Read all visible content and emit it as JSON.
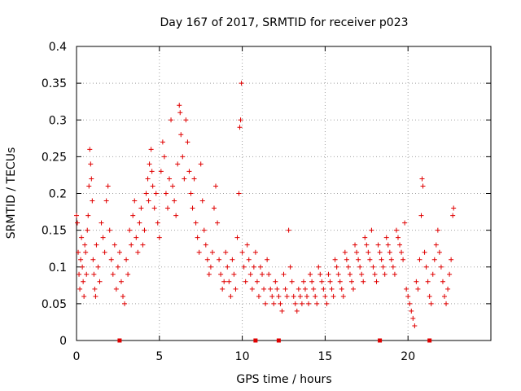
{
  "chart_data": {
    "type": "scatter",
    "title": "Day 167 of 2017, SRMTID for receiver p023",
    "xlabel": "GPS time / hours",
    "ylabel": "SRMTID / TECUs",
    "xlim": [
      0,
      25
    ],
    "ylim": [
      0,
      0.4
    ],
    "x_ticks": [
      0,
      5,
      10,
      15,
      20
    ],
    "x_tick_labels": [
      "0",
      "5",
      "10",
      "15",
      "20"
    ],
    "y_ticks": [
      0,
      0.05,
      0.1,
      0.15,
      0.2,
      0.25,
      0.3,
      0.35,
      0.4
    ],
    "y_tick_labels": [
      "0",
      "0.05",
      "0.1",
      "0.15",
      "0.2",
      "0.25",
      "0.3",
      "0.35",
      "0.4"
    ],
    "grid": true,
    "marker": "+",
    "color": "#e00000",
    "baseline_markers_x": [
      2.6,
      10.8,
      12.2,
      18.3,
      21.3
    ],
    "series": [
      {
        "name": "SRMTID",
        "points": [
          [
            0.0,
            0.17
          ],
          [
            0.05,
            0.16
          ],
          [
            0.1,
            0.12
          ],
          [
            0.15,
            0.09
          ],
          [
            0.2,
            0.07
          ],
          [
            0.25,
            0.11
          ],
          [
            0.3,
            0.14
          ],
          [
            0.35,
            0.1
          ],
          [
            0.4,
            0.08
          ],
          [
            0.45,
            0.06
          ],
          [
            0.5,
            0.13
          ],
          [
            0.55,
            0.12
          ],
          [
            0.6,
            0.09
          ],
          [
            0.65,
            0.15
          ],
          [
            0.7,
            0.17
          ],
          [
            0.75,
            0.21
          ],
          [
            0.8,
            0.26
          ],
          [
            0.85,
            0.24
          ],
          [
            0.9,
            0.22
          ],
          [
            0.95,
            0.19
          ],
          [
            1.0,
            0.11
          ],
          [
            1.05,
            0.09
          ],
          [
            1.1,
            0.07
          ],
          [
            1.15,
            0.06
          ],
          [
            1.2,
            0.13
          ],
          [
            1.3,
            0.1
          ],
          [
            1.4,
            0.08
          ],
          [
            1.5,
            0.16
          ],
          [
            1.6,
            0.14
          ],
          [
            1.7,
            0.12
          ],
          [
            1.8,
            0.19
          ],
          [
            1.9,
            0.21
          ],
          [
            2.0,
            0.15
          ],
          [
            2.1,
            0.11
          ],
          [
            2.2,
            0.09
          ],
          [
            2.3,
            0.13
          ],
          [
            2.4,
            0.07
          ],
          [
            2.5,
            0.1
          ],
          [
            2.6,
            0.12
          ],
          [
            2.7,
            0.08
          ],
          [
            2.8,
            0.06
          ],
          [
            2.9,
            0.05
          ],
          [
            3.0,
            0.11
          ],
          [
            3.1,
            0.09
          ],
          [
            3.2,
            0.15
          ],
          [
            3.3,
            0.13
          ],
          [
            3.4,
            0.17
          ],
          [
            3.5,
            0.19
          ],
          [
            3.6,
            0.14
          ],
          [
            3.7,
            0.12
          ],
          [
            3.8,
            0.16
          ],
          [
            3.9,
            0.18
          ],
          [
            4.0,
            0.13
          ],
          [
            4.1,
            0.15
          ],
          [
            4.2,
            0.2
          ],
          [
            4.3,
            0.22
          ],
          [
            4.35,
            0.19
          ],
          [
            4.4,
            0.24
          ],
          [
            4.5,
            0.26
          ],
          [
            4.55,
            0.23
          ],
          [
            4.6,
            0.21
          ],
          [
            4.7,
            0.18
          ],
          [
            4.8,
            0.2
          ],
          [
            4.9,
            0.16
          ],
          [
            5.0,
            0.14
          ],
          [
            5.1,
            0.23
          ],
          [
            5.2,
            0.27
          ],
          [
            5.3,
            0.25
          ],
          [
            5.4,
            0.2
          ],
          [
            5.5,
            0.18
          ],
          [
            5.6,
            0.22
          ],
          [
            5.7,
            0.3
          ],
          [
            5.8,
            0.21
          ],
          [
            5.9,
            0.19
          ],
          [
            6.0,
            0.17
          ],
          [
            6.1,
            0.24
          ],
          [
            6.2,
            0.32
          ],
          [
            6.25,
            0.31
          ],
          [
            6.3,
            0.28
          ],
          [
            6.4,
            0.25
          ],
          [
            6.5,
            0.22
          ],
          [
            6.6,
            0.3
          ],
          [
            6.7,
            0.27
          ],
          [
            6.8,
            0.23
          ],
          [
            6.9,
            0.2
          ],
          [
            7.0,
            0.18
          ],
          [
            7.1,
            0.22
          ],
          [
            7.2,
            0.16
          ],
          [
            7.3,
            0.14
          ],
          [
            7.4,
            0.12
          ],
          [
            7.5,
            0.24
          ],
          [
            7.6,
            0.19
          ],
          [
            7.7,
            0.15
          ],
          [
            7.8,
            0.13
          ],
          [
            7.9,
            0.11
          ],
          [
            8.0,
            0.09
          ],
          [
            8.1,
            0.1
          ],
          [
            8.2,
            0.12
          ],
          [
            8.3,
            0.18
          ],
          [
            8.4,
            0.21
          ],
          [
            8.5,
            0.16
          ],
          [
            8.6,
            0.11
          ],
          [
            8.7,
            0.09
          ],
          [
            8.8,
            0.07
          ],
          [
            8.9,
            0.08
          ],
          [
            9.0,
            0.12
          ],
          [
            9.1,
            0.1
          ],
          [
            9.2,
            0.08
          ],
          [
            9.3,
            0.06
          ],
          [
            9.4,
            0.11
          ],
          [
            9.5,
            0.09
          ],
          [
            9.6,
            0.07
          ],
          [
            9.7,
            0.14
          ],
          [
            9.8,
            0.2
          ],
          [
            9.85,
            0.29
          ],
          [
            9.9,
            0.3
          ],
          [
            9.95,
            0.35
          ],
          [
            10.0,
            0.12
          ],
          [
            10.1,
            0.1
          ],
          [
            10.2,
            0.08
          ],
          [
            10.3,
            0.13
          ],
          [
            10.4,
            0.11
          ],
          [
            10.5,
            0.09
          ],
          [
            10.6,
            0.07
          ],
          [
            10.7,
            0.1
          ],
          [
            10.8,
            0.12
          ],
          [
            10.9,
            0.08
          ],
          [
            11.0,
            0.06
          ],
          [
            11.1,
            0.1
          ],
          [
            11.2,
            0.09
          ],
          [
            11.3,
            0.07
          ],
          [
            11.4,
            0.05
          ],
          [
            11.5,
            0.11
          ],
          [
            11.6,
            0.09
          ],
          [
            11.7,
            0.07
          ],
          [
            11.8,
            0.06
          ],
          [
            11.9,
            0.05
          ],
          [
            12.0,
            0.08
          ],
          [
            12.1,
            0.07
          ],
          [
            12.2,
            0.06
          ],
          [
            12.3,
            0.05
          ],
          [
            12.4,
            0.04
          ],
          [
            12.5,
            0.09
          ],
          [
            12.6,
            0.07
          ],
          [
            12.7,
            0.06
          ],
          [
            12.8,
            0.15
          ],
          [
            12.9,
            0.1
          ],
          [
            13.0,
            0.08
          ],
          [
            13.1,
            0.06
          ],
          [
            13.2,
            0.05
          ],
          [
            13.3,
            0.04
          ],
          [
            13.4,
            0.07
          ],
          [
            13.5,
            0.06
          ],
          [
            13.6,
            0.05
          ],
          [
            13.7,
            0.08
          ],
          [
            13.8,
            0.07
          ],
          [
            13.9,
            0.06
          ],
          [
            14.0,
            0.05
          ],
          [
            14.1,
            0.09
          ],
          [
            14.2,
            0.08
          ],
          [
            14.3,
            0.07
          ],
          [
            14.4,
            0.06
          ],
          [
            14.5,
            0.05
          ],
          [
            14.6,
            0.1
          ],
          [
            14.7,
            0.09
          ],
          [
            14.8,
            0.08
          ],
          [
            14.9,
            0.07
          ],
          [
            15.0,
            0.06
          ],
          [
            15.1,
            0.05
          ],
          [
            15.2,
            0.09
          ],
          [
            15.3,
            0.08
          ],
          [
            15.4,
            0.07
          ],
          [
            15.5,
            0.06
          ],
          [
            15.6,
            0.11
          ],
          [
            15.7,
            0.1
          ],
          [
            15.8,
            0.09
          ],
          [
            15.9,
            0.08
          ],
          [
            16.0,
            0.07
          ],
          [
            16.1,
            0.06
          ],
          [
            16.2,
            0.12
          ],
          [
            16.3,
            0.11
          ],
          [
            16.4,
            0.1
          ],
          [
            16.5,
            0.09
          ],
          [
            16.6,
            0.08
          ],
          [
            16.7,
            0.07
          ],
          [
            16.8,
            0.13
          ],
          [
            16.9,
            0.12
          ],
          [
            17.0,
            0.11
          ],
          [
            17.1,
            0.1
          ],
          [
            17.2,
            0.09
          ],
          [
            17.3,
            0.08
          ],
          [
            17.4,
            0.14
          ],
          [
            17.5,
            0.13
          ],
          [
            17.6,
            0.12
          ],
          [
            17.7,
            0.11
          ],
          [
            17.8,
            0.15
          ],
          [
            17.9,
            0.1
          ],
          [
            18.0,
            0.09
          ],
          [
            18.1,
            0.08
          ],
          [
            18.2,
            0.13
          ],
          [
            18.3,
            0.12
          ],
          [
            18.4,
            0.11
          ],
          [
            18.5,
            0.1
          ],
          [
            18.6,
            0.09
          ],
          [
            18.7,
            0.14
          ],
          [
            18.8,
            0.13
          ],
          [
            18.9,
            0.12
          ],
          [
            19.0,
            0.11
          ],
          [
            19.1,
            0.1
          ],
          [
            19.2,
            0.09
          ],
          [
            19.3,
            0.15
          ],
          [
            19.4,
            0.14
          ],
          [
            19.5,
            0.13
          ],
          [
            19.6,
            0.12
          ],
          [
            19.7,
            0.11
          ],
          [
            19.8,
            0.16
          ],
          [
            19.9,
            0.07
          ],
          [
            20.0,
            0.06
          ],
          [
            20.1,
            0.05
          ],
          [
            20.2,
            0.04
          ],
          [
            20.3,
            0.03
          ],
          [
            20.4,
            0.02
          ],
          [
            20.5,
            0.08
          ],
          [
            20.6,
            0.07
          ],
          [
            20.7,
            0.11
          ],
          [
            20.8,
            0.17
          ],
          [
            20.85,
            0.22
          ],
          [
            20.9,
            0.21
          ],
          [
            21.0,
            0.12
          ],
          [
            21.1,
            0.1
          ],
          [
            21.2,
            0.08
          ],
          [
            21.3,
            0.06
          ],
          [
            21.4,
            0.05
          ],
          [
            21.5,
            0.09
          ],
          [
            21.6,
            0.11
          ],
          [
            21.7,
            0.13
          ],
          [
            21.8,
            0.15
          ],
          [
            21.9,
            0.12
          ],
          [
            22.0,
            0.1
          ],
          [
            22.1,
            0.08
          ],
          [
            22.2,
            0.06
          ],
          [
            22.3,
            0.05
          ],
          [
            22.4,
            0.07
          ],
          [
            22.5,
            0.09
          ],
          [
            22.6,
            0.11
          ],
          [
            22.7,
            0.17
          ],
          [
            22.75,
            0.18
          ]
        ]
      }
    ]
  }
}
